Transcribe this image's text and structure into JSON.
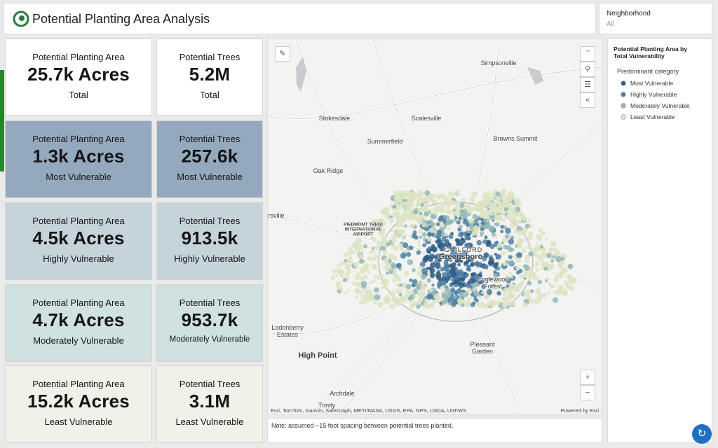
{
  "header": {
    "title": "Potential Planting Area Analysis",
    "filter_label": "Neighborhood",
    "filter_value": "All"
  },
  "cards": [
    {
      "title": "Potential Planting Area",
      "value": "25.7k Acres",
      "subtitle": "Total"
    },
    {
      "title": "Potential Trees",
      "value": "5.2M",
      "subtitle": "Total"
    },
    {
      "title": "Potential Planting Area",
      "value": "1.3k Acres",
      "subtitle": "Most Vulnerable"
    },
    {
      "title": "Potential Trees",
      "value": "257.6k",
      "subtitle": "Most Vulnerable"
    },
    {
      "title": "Potential Planting Area",
      "value": "4.5k Acres",
      "subtitle": "Highly Vulnerable"
    },
    {
      "title": "Potential Trees",
      "value": "913.5k",
      "subtitle": "Highly Vulnerable"
    },
    {
      "title": "Potential Planting Area",
      "value": "4.7k Acres",
      "subtitle": "Moderately Vulnerable"
    },
    {
      "title": "Potential Trees",
      "value": "953.7k",
      "subtitle": "Moderately Vulnerable"
    },
    {
      "title": "Potential Planting Area",
      "value": "15.2k Acres",
      "subtitle": "Least Vulnerable"
    },
    {
      "title": "Potential Trees",
      "value": "3.1M",
      "subtitle": "Least Vulnerable"
    }
  ],
  "map": {
    "places": [
      "Simpsonville",
      "Stokesdale",
      "Scalesville",
      "Summerfield",
      "Browns Summit",
      "Oak Ridge",
      "rsville",
      "PIEDMONT TRIAD INTERNATIONAL AIRPORT",
      "GUILFORD",
      "Greensboro",
      "Englewood Forest",
      "Lodonberry Estates",
      "Pleasant Garden",
      "High Point",
      "Archdale",
      "Trinity"
    ],
    "attribution": "Esri, TomTom, Garmin, SafeGraph, METI/NASA, USGS, EPA, NPS, USDA, USFWS",
    "powered_by": "Powered by Esri"
  },
  "note": "Note: assumed ~15 foot spacing between potential trees planted.",
  "legend": {
    "title": "Potential Planting Area by Total Vulnerability",
    "subtitle": "Predominant category",
    "items": [
      {
        "label": "Most Vulnerable",
        "color": "#2d5b84"
      },
      {
        "label": "Highly Vulnerable",
        "color": "#4f80a4"
      },
      {
        "label": "Moderately Vulnerable",
        "color": "#93b7ba"
      },
      {
        "label": "Least Vulnerable",
        "color": "#dde4c3"
      }
    ]
  }
}
